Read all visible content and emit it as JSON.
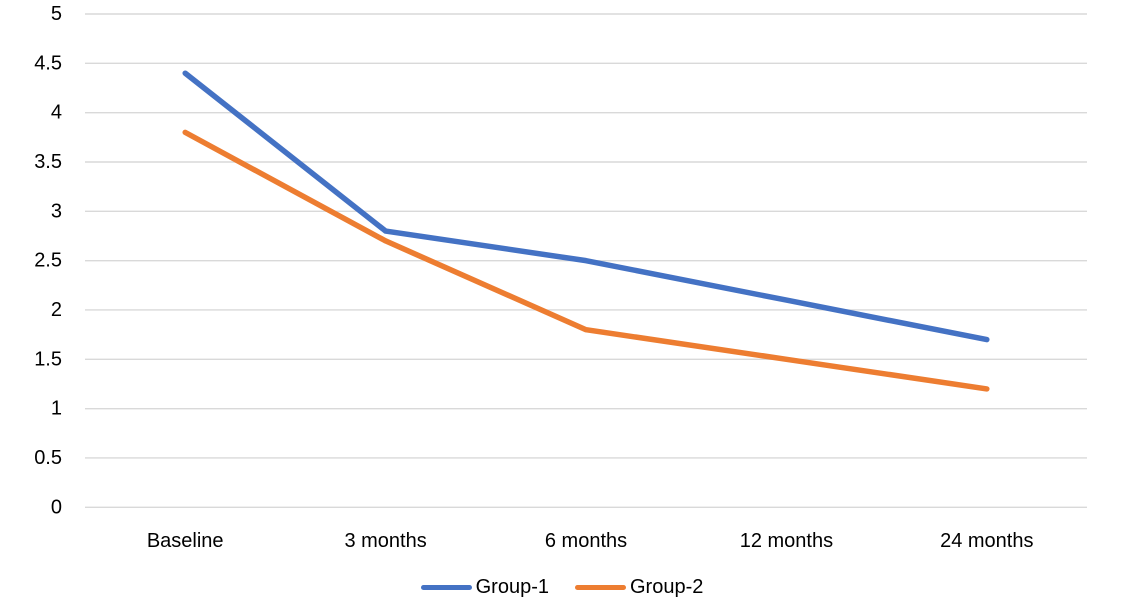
{
  "chart_data": {
    "type": "line",
    "title": "",
    "xlabel": "",
    "ylabel": "",
    "categories": [
      "Baseline",
      "3 months",
      "6 months",
      "12 months",
      "24 months"
    ],
    "series": [
      {
        "name": "Group-1",
        "color": "#4472C4",
        "values": [
          4.4,
          2.8,
          2.5,
          2.1,
          1.7
        ]
      },
      {
        "name": "Group-2",
        "color": "#ED7D31",
        "values": [
          3.8,
          2.7,
          1.8,
          1.5,
          1.2
        ]
      }
    ],
    "ylim": [
      0,
      5
    ],
    "ytick_step": 0.5,
    "yticks": [
      "5",
      "4.5",
      "4",
      "3.5",
      "3",
      "2.5",
      "2",
      "1.5",
      "1",
      "0.5",
      "0"
    ],
    "grid": true,
    "gridline_color": "#D9D9D9",
    "axis_line_color": "#D9D9D9",
    "text_color": "#000000",
    "legend_position": "bottom",
    "background_color": "#FFFFFF"
  }
}
